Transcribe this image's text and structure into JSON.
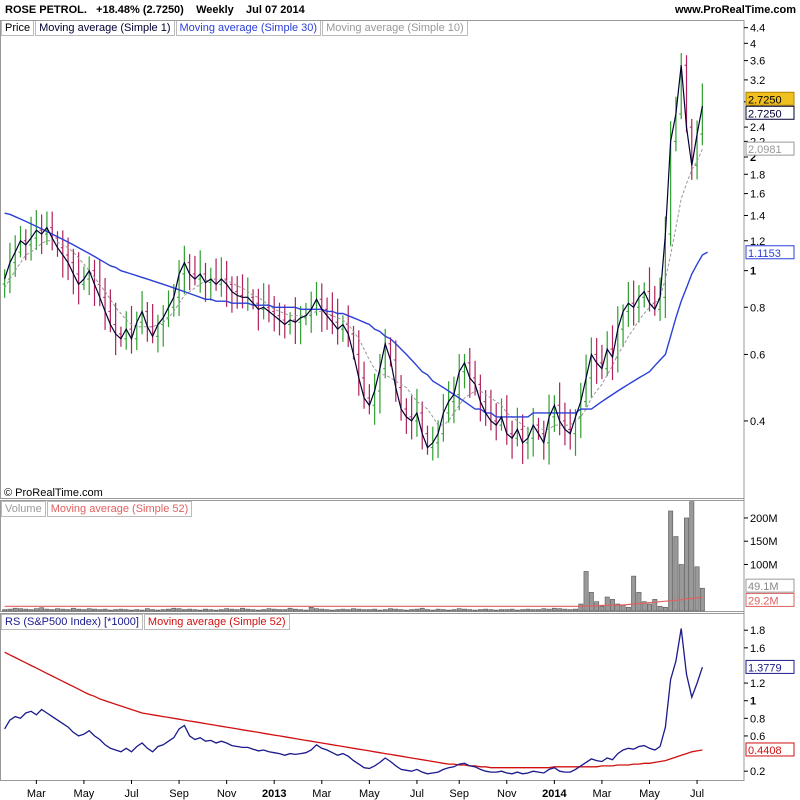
{
  "header": {
    "symbol": "ROSE PETROL.",
    "change": "+18.48% (2.7250)",
    "period": "Weekly",
    "date": "Jul 07 2014",
    "site": "www.ProRealTime.com"
  },
  "copyright": "© ProRealTime.com",
  "colors": {
    "up": "#2e9e2e",
    "down": "#b0205a",
    "close_line": "#000033",
    "ma30": "#2b3fd6",
    "ma10": "#999999",
    "volume_bar": "#888888",
    "ma52_vol": "#e06060",
    "rs_line": "#1a1a8c",
    "rs_ma": "#d01010",
    "badge_last": "#f0c020"
  },
  "price_panel": {
    "legend": [
      "Price",
      "Moving average (Simple 1)",
      "Moving average (Simple 30)",
      "Moving average (Simple 10)"
    ],
    "scale": "log",
    "ylim": [
      0.25,
      4.5
    ],
    "ticks": [
      "4.4",
      "4",
      "3.6",
      "3.2",
      "2.8",
      "2.4",
      "2.2",
      "2",
      "1.8",
      "1.6",
      "1.4",
      "1.2",
      "1",
      "0.8",
      "0.6",
      "0.4"
    ],
    "badges": [
      {
        "value": 2.725,
        "label": "2.7250",
        "style": "last"
      },
      {
        "value": 2.725,
        "label": "2.7250",
        "style": "sma1"
      },
      {
        "value": 2.0981,
        "label": "2.0981",
        "style": "sma10"
      },
      {
        "value": 1.1153,
        "label": "1.1153",
        "style": "sma30"
      }
    ]
  },
  "volume_panel": {
    "legend": [
      "Volume",
      "Moving average (Simple 52)"
    ],
    "ylim": [
      0,
      230
    ],
    "unit": "M",
    "ticks": [
      "200M",
      "150M",
      "100M"
    ],
    "badges": [
      {
        "value": 49.1,
        "label": "49.1M",
        "style": "vol"
      },
      {
        "value": 29.2,
        "label": "29.2M",
        "style": "volma"
      }
    ]
  },
  "rs_panel": {
    "legend": [
      "RS (S&P500 Index) [*1000]",
      "Moving average (Simple 52)"
    ],
    "ylim": [
      0.1,
      1.95
    ],
    "ticks": [
      "1.8",
      "1.6",
      "1.2",
      "1",
      "0.8",
      "0.6",
      "0.2"
    ],
    "badges": [
      {
        "value": 1.3779,
        "label": "1.3779",
        "style": "rs"
      },
      {
        "value": 0.4408,
        "label": "0.4408",
        "style": "rsma"
      }
    ]
  },
  "x_axis": {
    "labels": [
      {
        "w": 6,
        "label": "Mar",
        "bold": false
      },
      {
        "w": 15,
        "label": "May",
        "bold": false
      },
      {
        "w": 24,
        "label": "Jul",
        "bold": false
      },
      {
        "w": 33,
        "label": "Sep",
        "bold": false
      },
      {
        "w": 42,
        "label": "Nov",
        "bold": false
      },
      {
        "w": 51,
        "label": "2013",
        "bold": true
      },
      {
        "w": 60,
        "label": "Mar",
        "bold": false
      },
      {
        "w": 69,
        "label": "May",
        "bold": false
      },
      {
        "w": 78,
        "label": "Jul",
        "bold": false
      },
      {
        "w": 86,
        "label": "Sep",
        "bold": false
      },
      {
        "w": 95,
        "label": "Nov",
        "bold": false
      },
      {
        "w": 104,
        "label": "2014",
        "bold": true
      },
      {
        "w": 113,
        "label": "Mar",
        "bold": false
      },
      {
        "w": 122,
        "label": "May",
        "bold": false
      },
      {
        "w": 131,
        "label": "Jul",
        "bold": false
      }
    ]
  },
  "chart_data": {
    "type": "candlestick",
    "frequency": "weekly",
    "weeks": 132,
    "close": [
      0.95,
      1.05,
      1.12,
      1.2,
      1.17,
      1.22,
      1.28,
      1.25,
      1.3,
      1.22,
      1.15,
      1.1,
      1.05,
      0.98,
      0.92,
      0.95,
      1.0,
      0.92,
      0.85,
      0.78,
      0.72,
      0.68,
      0.66,
      0.7,
      0.66,
      0.73,
      0.78,
      0.71,
      0.67,
      0.72,
      0.75,
      0.8,
      0.85,
      0.98,
      1.05,
      0.98,
      0.95,
      0.98,
      0.93,
      0.95,
      0.92,
      0.95,
      0.92,
      0.88,
      0.86,
      0.85,
      0.85,
      0.82,
      0.79,
      0.8,
      0.78,
      0.76,
      0.74,
      0.72,
      0.74,
      0.73,
      0.75,
      0.76,
      0.79,
      0.84,
      0.79,
      0.76,
      0.73,
      0.7,
      0.72,
      0.68,
      0.6,
      0.52,
      0.46,
      0.44,
      0.48,
      0.55,
      0.64,
      0.58,
      0.49,
      0.43,
      0.41,
      0.4,
      0.42,
      0.37,
      0.34,
      0.35,
      0.37,
      0.42,
      0.45,
      0.47,
      0.54,
      0.57,
      0.52,
      0.5,
      0.45,
      0.42,
      0.4,
      0.39,
      0.41,
      0.37,
      0.36,
      0.38,
      0.35,
      0.36,
      0.39,
      0.37,
      0.35,
      0.41,
      0.44,
      0.4,
      0.38,
      0.37,
      0.41,
      0.45,
      0.52,
      0.6,
      0.57,
      0.55,
      0.62,
      0.59,
      0.7,
      0.78,
      0.82,
      0.8,
      0.85,
      0.88,
      0.82,
      0.79,
      0.85,
      1.25,
      2.2,
      2.6,
      3.5,
      2.4,
      1.9,
      2.3,
      2.73
    ],
    "ma30": [
      1.42,
      1.41,
      1.39,
      1.37,
      1.35,
      1.33,
      1.31,
      1.29,
      1.27,
      1.25,
      1.23,
      1.21,
      1.19,
      1.17,
      1.15,
      1.13,
      1.11,
      1.09,
      1.07,
      1.05,
      1.03,
      1.02,
      1.0,
      0.99,
      0.98,
      0.97,
      0.96,
      0.95,
      0.94,
      0.93,
      0.92,
      0.91,
      0.9,
      0.89,
      0.88,
      0.87,
      0.86,
      0.85,
      0.84,
      0.84,
      0.83,
      0.83,
      0.83,
      0.82,
      0.82,
      0.82,
      0.82,
      0.81,
      0.81,
      0.81,
      0.81,
      0.8,
      0.8,
      0.8,
      0.8,
      0.8,
      0.79,
      0.79,
      0.79,
      0.79,
      0.79,
      0.78,
      0.78,
      0.77,
      0.77,
      0.76,
      0.75,
      0.74,
      0.73,
      0.72,
      0.7,
      0.69,
      0.67,
      0.66,
      0.64,
      0.62,
      0.6,
      0.58,
      0.56,
      0.54,
      0.53,
      0.51,
      0.5,
      0.49,
      0.48,
      0.47,
      0.46,
      0.45,
      0.44,
      0.43,
      0.43,
      0.42,
      0.42,
      0.41,
      0.41,
      0.41,
      0.41,
      0.41,
      0.41,
      0.41,
      0.42,
      0.42,
      0.42,
      0.42,
      0.42,
      0.42,
      0.42,
      0.42,
      0.42,
      0.43,
      0.43,
      0.43,
      0.44,
      0.45,
      0.46,
      0.47,
      0.48,
      0.49,
      0.5,
      0.51,
      0.52,
      0.53,
      0.54,
      0.56,
      0.58,
      0.6,
      0.67,
      0.75,
      0.83,
      0.9,
      0.98,
      1.04,
      1.1,
      1.12
    ],
    "ma10": [
      0.9,
      0.95,
      1.0,
      1.05,
      1.1,
      1.12,
      1.15,
      1.18,
      1.2,
      1.2,
      1.19,
      1.17,
      1.15,
      1.12,
      1.08,
      1.04,
      1.0,
      0.96,
      0.92,
      0.88,
      0.84,
      0.8,
      0.77,
      0.74,
      0.72,
      0.71,
      0.71,
      0.71,
      0.71,
      0.72,
      0.73,
      0.75,
      0.78,
      0.82,
      0.86,
      0.88,
      0.9,
      0.92,
      0.94,
      0.95,
      0.95,
      0.95,
      0.94,
      0.93,
      0.91,
      0.9,
      0.88,
      0.86,
      0.85,
      0.83,
      0.81,
      0.79,
      0.78,
      0.77,
      0.76,
      0.76,
      0.76,
      0.76,
      0.77,
      0.78,
      0.78,
      0.77,
      0.76,
      0.75,
      0.74,
      0.72,
      0.69,
      0.66,
      0.62,
      0.58,
      0.55,
      0.53,
      0.53,
      0.52,
      0.51,
      0.5,
      0.49,
      0.47,
      0.45,
      0.44,
      0.43,
      0.41,
      0.39,
      0.39,
      0.4,
      0.42,
      0.44,
      0.46,
      0.47,
      0.48,
      0.48,
      0.47,
      0.46,
      0.45,
      0.44,
      0.42,
      0.41,
      0.4,
      0.39,
      0.38,
      0.38,
      0.38,
      0.38,
      0.38,
      0.39,
      0.39,
      0.39,
      0.39,
      0.4,
      0.41,
      0.43,
      0.46,
      0.48,
      0.5,
      0.53,
      0.56,
      0.6,
      0.63,
      0.67,
      0.7,
      0.74,
      0.77,
      0.8,
      0.82,
      0.85,
      0.95,
      1.1,
      1.3,
      1.55,
      1.7,
      1.85,
      1.95,
      2.1
    ],
    "volume": [
      3,
      4,
      6,
      5,
      4,
      3,
      5,
      7,
      4,
      3,
      5,
      4,
      3,
      6,
      4,
      3,
      5,
      4,
      3,
      4,
      2,
      3,
      4,
      3,
      2,
      3,
      2,
      5,
      3,
      2,
      3,
      4,
      6,
      5,
      3,
      4,
      3,
      2,
      4,
      3,
      2,
      3,
      5,
      4,
      3,
      6,
      4,
      3,
      2,
      3,
      5,
      4,
      3,
      3,
      6,
      4,
      3,
      2,
      8,
      5,
      4,
      3,
      2,
      3,
      4,
      3,
      5,
      4,
      3,
      3,
      4,
      2,
      3,
      5,
      4,
      3,
      2,
      3,
      4,
      6,
      3,
      2,
      4,
      3,
      2,
      3,
      5,
      4,
      3,
      2,
      3,
      4,
      3,
      2,
      3,
      3,
      4,
      2,
      3,
      4,
      3,
      3,
      5,
      4,
      6,
      5,
      4,
      3,
      4,
      15,
      85,
      40,
      20,
      10,
      30,
      25,
      15,
      12,
      8,
      75,
      40,
      20,
      15,
      25,
      10,
      8,
      215,
      160,
      100,
      200,
      235,
      95,
      49
    ],
    "volume_ma52": [
      10,
      10,
      10,
      10,
      10,
      10,
      10,
      10,
      10,
      10,
      10,
      10,
      10,
      10,
      10,
      10,
      10,
      10,
      10,
      10,
      10,
      10,
      10,
      10,
      10,
      10,
      10,
      10,
      10,
      10,
      10,
      10,
      10,
      10,
      10,
      10,
      10,
      10,
      10,
      10,
      10,
      10,
      10,
      10,
      10,
      10,
      10,
      10,
      10,
      10,
      10,
      10,
      10,
      10,
      10,
      10,
      10,
      10,
      10,
      10,
      10,
      10,
      10,
      10,
      10,
      10,
      10,
      10,
      10,
      10,
      10,
      10,
      10,
      10,
      10,
      10,
      10,
      10,
      10,
      10,
      10,
      10,
      10,
      10,
      10,
      10,
      10,
      10,
      10,
      10,
      10,
      10,
      10,
      10,
      10,
      10,
      10,
      10,
      10,
      10,
      10,
      10,
      10,
      10,
      10,
      10,
      10,
      10,
      10,
      10,
      11,
      11,
      11,
      12,
      12,
      12,
      13,
      13,
      14,
      15,
      16,
      17,
      18,
      19,
      20,
      21,
      22,
      23,
      24,
      26,
      27,
      28,
      29
    ],
    "rs": [
      0.68,
      0.78,
      0.82,
      0.8,
      0.86,
      0.88,
      0.84,
      0.9,
      0.86,
      0.82,
      0.78,
      0.74,
      0.7,
      0.64,
      0.6,
      0.62,
      0.66,
      0.6,
      0.56,
      0.5,
      0.46,
      0.44,
      0.42,
      0.46,
      0.42,
      0.48,
      0.52,
      0.46,
      0.42,
      0.48,
      0.5,
      0.54,
      0.58,
      0.68,
      0.72,
      0.6,
      0.56,
      0.58,
      0.54,
      0.55,
      0.52,
      0.54,
      0.52,
      0.49,
      0.48,
      0.47,
      0.47,
      0.45,
      0.43,
      0.44,
      0.42,
      0.41,
      0.4,
      0.38,
      0.4,
      0.39,
      0.4,
      0.41,
      0.44,
      0.5,
      0.46,
      0.44,
      0.41,
      0.38,
      0.4,
      0.37,
      0.32,
      0.28,
      0.24,
      0.23,
      0.26,
      0.3,
      0.35,
      0.31,
      0.26,
      0.22,
      0.21,
      0.2,
      0.22,
      0.19,
      0.17,
      0.18,
      0.19,
      0.22,
      0.24,
      0.25,
      0.28,
      0.29,
      0.26,
      0.25,
      0.22,
      0.2,
      0.19,
      0.19,
      0.2,
      0.18,
      0.17,
      0.19,
      0.17,
      0.18,
      0.2,
      0.19,
      0.18,
      0.22,
      0.24,
      0.2,
      0.19,
      0.19,
      0.22,
      0.26,
      0.3,
      0.34,
      0.32,
      0.31,
      0.35,
      0.33,
      0.4,
      0.44,
      0.46,
      0.45,
      0.48,
      0.49,
      0.46,
      0.44,
      0.48,
      0.7,
      1.24,
      1.45,
      1.82,
      1.3,
      1.04,
      1.2,
      1.38
    ],
    "rs_ma52": [
      1.55,
      1.52,
      1.49,
      1.46,
      1.43,
      1.4,
      1.37,
      1.34,
      1.31,
      1.28,
      1.25,
      1.22,
      1.19,
      1.16,
      1.13,
      1.1,
      1.07,
      1.05,
      1.02,
      1.0,
      0.98,
      0.96,
      0.94,
      0.92,
      0.9,
      0.88,
      0.86,
      0.85,
      0.84,
      0.83,
      0.82,
      0.81,
      0.8,
      0.79,
      0.78,
      0.77,
      0.76,
      0.75,
      0.74,
      0.73,
      0.72,
      0.71,
      0.7,
      0.69,
      0.68,
      0.67,
      0.66,
      0.65,
      0.64,
      0.63,
      0.62,
      0.61,
      0.6,
      0.59,
      0.58,
      0.57,
      0.56,
      0.55,
      0.54,
      0.53,
      0.52,
      0.51,
      0.5,
      0.49,
      0.48,
      0.47,
      0.46,
      0.45,
      0.44,
      0.43,
      0.42,
      0.41,
      0.4,
      0.39,
      0.38,
      0.37,
      0.36,
      0.35,
      0.34,
      0.33,
      0.32,
      0.31,
      0.3,
      0.29,
      0.28,
      0.28,
      0.27,
      0.27,
      0.26,
      0.26,
      0.25,
      0.25,
      0.24,
      0.24,
      0.24,
      0.24,
      0.24,
      0.24,
      0.24,
      0.24,
      0.24,
      0.24,
      0.24,
      0.24,
      0.25,
      0.25,
      0.25,
      0.25,
      0.25,
      0.25,
      0.25,
      0.25,
      0.25,
      0.26,
      0.26,
      0.26,
      0.27,
      0.27,
      0.27,
      0.28,
      0.28,
      0.29,
      0.29,
      0.3,
      0.31,
      0.32,
      0.34,
      0.36,
      0.38,
      0.4,
      0.42,
      0.43,
      0.44
    ]
  }
}
